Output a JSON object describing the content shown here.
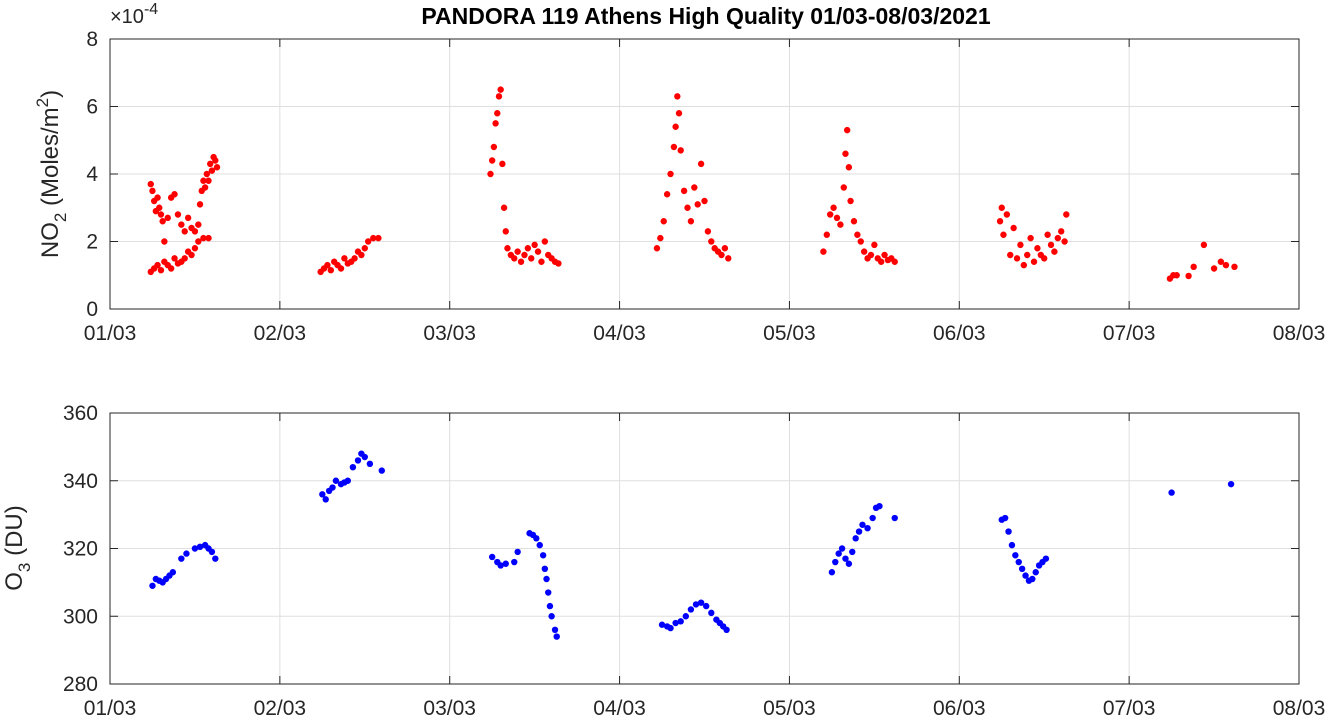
{
  "title": "PANDORA 119 Athens High Quality 01/03-08/03/2021",
  "colors": {
    "no2": "#ff0000",
    "o3": "#0000ff",
    "grid": "#dfdfdf",
    "axis": "#262626"
  },
  "chart_data": [
    {
      "type": "scatter",
      "ylabel_parts": {
        "main": "NO",
        "sub": "2",
        "units_open": " (Moles/m",
        "sup": "2",
        "units_close": ")"
      },
      "y_multiplier": {
        "prefix": "×10",
        "exponent": "-4"
      },
      "xlim": [
        0,
        7
      ],
      "ylim": [
        0,
        8
      ],
      "x_ticks": [
        0,
        1,
        2,
        3,
        4,
        5,
        6,
        7
      ],
      "x_tick_labels": [
        "01/03",
        "02/03",
        "03/03",
        "04/03",
        "05/03",
        "06/03",
        "07/03",
        "08/03"
      ],
      "y_ticks": [
        0,
        2,
        4,
        6,
        8
      ],
      "y_tick_labels": [
        "0",
        "2",
        "4",
        "6",
        "8"
      ],
      "grid": true,
      "x_unit": "days from 01/03",
      "series": [
        {
          "color": "#ff0000",
          "points": [
            [
              0.24,
              3.7
            ],
            [
              0.25,
              3.5
            ],
            [
              0.26,
              3.2
            ],
            [
              0.27,
              2.9
            ],
            [
              0.28,
              3.3
            ],
            [
              0.29,
              3.0
            ],
            [
              0.3,
              2.8
            ],
            [
              0.31,
              2.6
            ],
            [
              0.32,
              2.0
            ],
            [
              0.34,
              2.7
            ],
            [
              0.36,
              3.3
            ],
            [
              0.38,
              3.4
            ],
            [
              0.4,
              2.8
            ],
            [
              0.42,
              2.5
            ],
            [
              0.44,
              2.3
            ],
            [
              0.46,
              2.7
            ],
            [
              0.48,
              2.4
            ],
            [
              0.5,
              2.3
            ],
            [
              0.52,
              2.5
            ],
            [
              0.53,
              3.1
            ],
            [
              0.54,
              3.5
            ],
            [
              0.55,
              3.8
            ],
            [
              0.56,
              3.6
            ],
            [
              0.57,
              4.0
            ],
            [
              0.58,
              3.8
            ],
            [
              0.59,
              4.3
            ],
            [
              0.6,
              4.1
            ],
            [
              0.61,
              4.5
            ],
            [
              0.62,
              4.4
            ],
            [
              0.63,
              4.2
            ],
            [
              0.24,
              1.1
            ],
            [
              0.26,
              1.2
            ],
            [
              0.28,
              1.3
            ],
            [
              0.3,
              1.15
            ],
            [
              0.32,
              1.4
            ],
            [
              0.34,
              1.3
            ],
            [
              0.36,
              1.2
            ],
            [
              0.38,
              1.5
            ],
            [
              0.4,
              1.35
            ],
            [
              0.42,
              1.4
            ],
            [
              0.44,
              1.5
            ],
            [
              0.46,
              1.7
            ],
            [
              0.48,
              1.6
            ],
            [
              0.5,
              1.8
            ],
            [
              0.52,
              2.0
            ],
            [
              0.55,
              2.1
            ],
            [
              0.58,
              2.1
            ]
          ]
        },
        {
          "color": "#ff0000",
          "points": [
            [
              1.24,
              1.1
            ],
            [
              1.26,
              1.2
            ],
            [
              1.28,
              1.3
            ],
            [
              1.3,
              1.15
            ],
            [
              1.32,
              1.4
            ],
            [
              1.34,
              1.3
            ],
            [
              1.36,
              1.2
            ],
            [
              1.38,
              1.5
            ],
            [
              1.4,
              1.35
            ],
            [
              1.42,
              1.4
            ],
            [
              1.44,
              1.5
            ],
            [
              1.46,
              1.7
            ],
            [
              1.48,
              1.6
            ],
            [
              1.5,
              1.8
            ],
            [
              1.52,
              2.0
            ],
            [
              1.55,
              2.1
            ],
            [
              1.58,
              2.1
            ],
            [
              2.24,
              4.0
            ],
            [
              2.25,
              4.4
            ],
            [
              2.26,
              4.8
            ],
            [
              2.27,
              5.5
            ],
            [
              2.28,
              5.8
            ],
            [
              2.29,
              6.3
            ],
            [
              2.3,
              6.5
            ],
            [
              2.31,
              4.3
            ],
            [
              2.32,
              3.0
            ],
            [
              2.33,
              2.3
            ],
            [
              2.34,
              1.8
            ],
            [
              2.36,
              1.6
            ],
            [
              2.38,
              1.5
            ],
            [
              2.4,
              1.7
            ],
            [
              2.42,
              1.4
            ],
            [
              2.44,
              1.6
            ],
            [
              2.46,
              1.8
            ],
            [
              2.48,
              1.5
            ],
            [
              2.5,
              1.9
            ],
            [
              2.52,
              1.7
            ],
            [
              2.54,
              1.4
            ],
            [
              2.56,
              2.0
            ],
            [
              2.58,
              1.6
            ],
            [
              2.6,
              1.5
            ],
            [
              2.62,
              1.4
            ],
            [
              2.64,
              1.35
            ],
            [
              3.22,
              1.8
            ],
            [
              3.24,
              2.1
            ],
            [
              3.26,
              2.6
            ],
            [
              3.28,
              3.4
            ],
            [
              3.3,
              4.0
            ],
            [
              3.32,
              4.8
            ],
            [
              3.33,
              5.4
            ],
            [
              3.34,
              6.3
            ],
            [
              3.35,
              5.8
            ],
            [
              3.36,
              4.7
            ],
            [
              3.38,
              3.5
            ],
            [
              3.4,
              3.0
            ],
            [
              3.42,
              2.6
            ],
            [
              3.44,
              3.6
            ],
            [
              3.46,
              3.1
            ],
            [
              3.48,
              4.3
            ],
            [
              3.5,
              3.2
            ],
            [
              3.52,
              2.3
            ],
            [
              3.54,
              2.0
            ],
            [
              3.56,
              1.8
            ],
            [
              3.58,
              1.7
            ],
            [
              3.6,
              1.6
            ],
            [
              3.62,
              1.8
            ],
            [
              3.64,
              1.5
            ],
            [
              4.2,
              1.7
            ],
            [
              4.22,
              2.2
            ],
            [
              4.24,
              2.8
            ],
            [
              4.26,
              3.0
            ],
            [
              4.28,
              2.7
            ],
            [
              4.3,
              2.5
            ],
            [
              4.32,
              3.6
            ],
            [
              4.33,
              4.6
            ],
            [
              4.34,
              5.3
            ],
            [
              4.35,
              4.2
            ],
            [
              4.36,
              3.2
            ],
            [
              4.38,
              2.6
            ],
            [
              4.4,
              2.2
            ],
            [
              4.42,
              2.0
            ],
            [
              4.44,
              1.7
            ],
            [
              4.46,
              1.5
            ],
            [
              4.48,
              1.6
            ],
            [
              4.5,
              1.9
            ],
            [
              4.52,
              1.5
            ],
            [
              4.54,
              1.4
            ],
            [
              4.56,
              1.6
            ],
            [
              4.58,
              1.45
            ],
            [
              4.6,
              1.5
            ],
            [
              4.62,
              1.4
            ],
            [
              5.24,
              2.6
            ],
            [
              5.25,
              3.0
            ],
            [
              5.26,
              2.2
            ],
            [
              5.28,
              2.8
            ],
            [
              5.3,
              1.6
            ],
            [
              5.32,
              2.4
            ],
            [
              5.34,
              1.5
            ],
            [
              5.36,
              1.9
            ],
            [
              5.38,
              1.3
            ],
            [
              5.4,
              1.6
            ],
            [
              5.42,
              2.1
            ],
            [
              5.44,
              1.4
            ],
            [
              5.46,
              1.8
            ],
            [
              5.48,
              1.6
            ],
            [
              5.5,
              1.5
            ],
            [
              5.52,
              2.2
            ],
            [
              5.54,
              1.9
            ],
            [
              5.56,
              1.7
            ],
            [
              5.58,
              2.1
            ],
            [
              5.6,
              2.3
            ],
            [
              5.62,
              2.0
            ],
            [
              5.63,
              2.8
            ],
            [
              6.24,
              0.9
            ],
            [
              6.26,
              1.0
            ],
            [
              6.28,
              1.0
            ],
            [
              6.35,
              0.98
            ],
            [
              6.38,
              1.25
            ],
            [
              6.44,
              1.9
            ],
            [
              6.5,
              1.2
            ],
            [
              6.54,
              1.4
            ],
            [
              6.57,
              1.3
            ],
            [
              6.62,
              1.25
            ]
          ]
        }
      ]
    },
    {
      "type": "scatter",
      "ylabel_parts": {
        "main": "O",
        "sub": "3",
        "units": " (DU)"
      },
      "xlim": [
        0,
        7
      ],
      "ylim": [
        280,
        360
      ],
      "x_ticks": [
        0,
        1,
        2,
        3,
        4,
        5,
        6,
        7
      ],
      "x_tick_labels": [
        "01/03",
        "02/03",
        "03/03",
        "04/03",
        "05/03",
        "06/03",
        "07/03",
        "08/03"
      ],
      "y_ticks": [
        280,
        300,
        320,
        340,
        360
      ],
      "y_tick_labels": [
        "280",
        "300",
        "320",
        "340",
        "360"
      ],
      "grid": true,
      "x_unit": "days from 01/03",
      "series": [
        {
          "color": "#0000ff",
          "points": [
            [
              0.25,
              309
            ],
            [
              0.27,
              311
            ],
            [
              0.29,
              310.5
            ],
            [
              0.31,
              310
            ],
            [
              0.33,
              311
            ],
            [
              0.35,
              312
            ],
            [
              0.37,
              313
            ],
            [
              0.42,
              317
            ],
            [
              0.45,
              318.5
            ],
            [
              0.5,
              320
            ],
            [
              0.53,
              320.5
            ],
            [
              0.56,
              321
            ],
            [
              0.58,
              320
            ],
            [
              0.6,
              319
            ],
            [
              0.62,
              317
            ],
            [
              1.25,
              336
            ],
            [
              1.27,
              334.5
            ],
            [
              1.29,
              337
            ],
            [
              1.31,
              338
            ],
            [
              1.33,
              340
            ],
            [
              1.36,
              339
            ],
            [
              1.38,
              339.5
            ],
            [
              1.4,
              340
            ],
            [
              1.43,
              344
            ],
            [
              1.46,
              346
            ],
            [
              1.48,
              348
            ],
            [
              1.5,
              347
            ],
            [
              1.53,
              345
            ],
            [
              1.6,
              343
            ],
            [
              2.25,
              317.5
            ],
            [
              2.28,
              316
            ],
            [
              2.3,
              315
            ],
            [
              2.33,
              315.5
            ],
            [
              2.38,
              316
            ],
            [
              2.4,
              319
            ],
            [
              2.47,
              324.5
            ],
            [
              2.49,
              324
            ],
            [
              2.51,
              323
            ],
            [
              2.53,
              321
            ],
            [
              2.55,
              318
            ],
            [
              2.56,
              314
            ],
            [
              2.57,
              311
            ],
            [
              2.58,
              307
            ],
            [
              2.59,
              303
            ],
            [
              2.6,
              300
            ],
            [
              2.62,
              296
            ],
            [
              2.63,
              294
            ],
            [
              3.25,
              297.5
            ],
            [
              3.28,
              297
            ],
            [
              3.3,
              296.5
            ],
            [
              3.33,
              298
            ],
            [
              3.36,
              298.5
            ],
            [
              3.39,
              300
            ],
            [
              3.42,
              302
            ],
            [
              3.45,
              303.5
            ],
            [
              3.48,
              304
            ],
            [
              3.51,
              303
            ],
            [
              3.54,
              301
            ],
            [
              3.57,
              299
            ],
            [
              3.59,
              298
            ],
            [
              3.61,
              297
            ],
            [
              3.63,
              296
            ],
            [
              4.25,
              313
            ],
            [
              4.27,
              316
            ],
            [
              4.29,
              318.5
            ],
            [
              4.31,
              320
            ],
            [
              4.33,
              317
            ],
            [
              4.35,
              315.5
            ],
            [
              4.37,
              319
            ],
            [
              4.39,
              323
            ],
            [
              4.41,
              325
            ],
            [
              4.43,
              327
            ],
            [
              4.46,
              326
            ],
            [
              4.49,
              329
            ],
            [
              4.51,
              332
            ],
            [
              4.53,
              332.5
            ],
            [
              4.62,
              329
            ],
            [
              5.25,
              328.5
            ],
            [
              5.27,
              329
            ],
            [
              5.29,
              325
            ],
            [
              5.31,
              321
            ],
            [
              5.33,
              318
            ],
            [
              5.35,
              316
            ],
            [
              5.37,
              314
            ],
            [
              5.39,
              312
            ],
            [
              5.41,
              310.5
            ],
            [
              5.43,
              311
            ],
            [
              5.45,
              313
            ],
            [
              5.47,
              315
            ],
            [
              5.49,
              316
            ],
            [
              5.51,
              317
            ],
            [
              6.25,
              336.5
            ],
            [
              6.6,
              339
            ]
          ]
        }
      ]
    }
  ]
}
